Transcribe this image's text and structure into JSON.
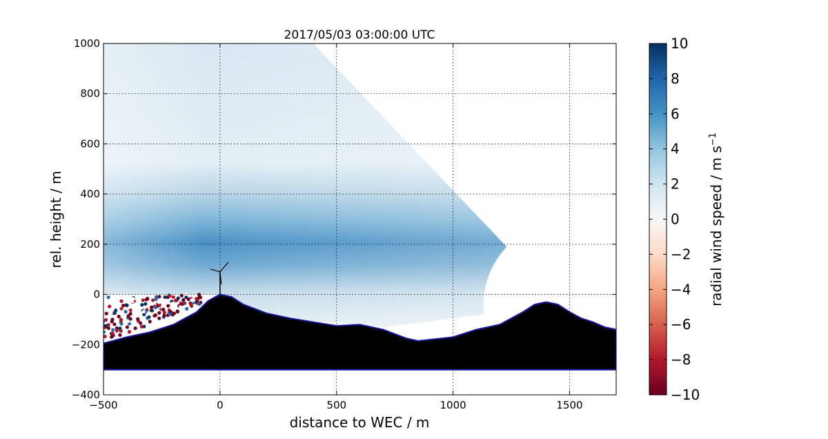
{
  "chart_data": {
    "type": "heatmap",
    "title": "2017/05/03 03:00:00 UTC",
    "xlabel": "distance to WEC / m",
    "ylabel": "rel. height / m",
    "xlim": [
      -500,
      1700
    ],
    "ylim": [
      -400,
      1000
    ],
    "xticks": [
      -500,
      0,
      500,
      1000,
      1500
    ],
    "yticks": [
      -400,
      -200,
      0,
      200,
      400,
      600,
      800,
      1000
    ],
    "xtick_labels": [
      "−500",
      "0",
      "500",
      "1000",
      "1500"
    ],
    "ytick_labels": [
      "−400",
      "−200",
      "0",
      "200",
      "400",
      "600",
      "800",
      "1000"
    ],
    "grid": true,
    "colorbar": {
      "label": "radial wind speed / m s",
      "label_superscript": "−1",
      "range": [
        -10,
        10
      ],
      "ticks": [
        10,
        8,
        6,
        4,
        2,
        0,
        -2,
        -4,
        -6,
        -8,
        -10
      ],
      "tick_labels": [
        "10",
        "8",
        "6",
        "4",
        "2",
        "0",
        "−2",
        "−4",
        "−6",
        "−8",
        "−10"
      ],
      "colormap": "RdBu",
      "colors": [
        "#67001f",
        "#b2182b",
        "#d6604d",
        "#f4a582",
        "#fddbc7",
        "#f7f7f7",
        "#d1e5f0",
        "#92c5de",
        "#4393c3",
        "#2166ac",
        "#053061"
      ]
    },
    "scan_sector": {
      "top_edge_x_at_1000m": 400,
      "far_range_end_x": 1230,
      "far_range_end_y": 190
    },
    "terrain_profile": {
      "x": [
        -500,
        -400,
        -300,
        -200,
        -100,
        -50,
        0,
        50,
        100,
        200,
        300,
        400,
        500,
        600,
        700,
        800,
        850,
        900,
        1000,
        1100,
        1200,
        1300,
        1350,
        1400,
        1450,
        1500,
        1550,
        1600,
        1650,
        1700
      ],
      "y": [
        -195,
        -170,
        -150,
        -120,
        -70,
        -25,
        0,
        -10,
        -40,
        -75,
        -95,
        -110,
        -125,
        -120,
        -140,
        -175,
        -185,
        -180,
        -170,
        -140,
        -120,
        -70,
        -40,
        -30,
        -40,
        -70,
        -95,
        -110,
        -130,
        -140
      ],
      "base": -300,
      "fill_color": "#000000",
      "outline_color": "#1a1aa0"
    },
    "turbine": {
      "x": 0,
      "hub_height": 90
    }
  }
}
